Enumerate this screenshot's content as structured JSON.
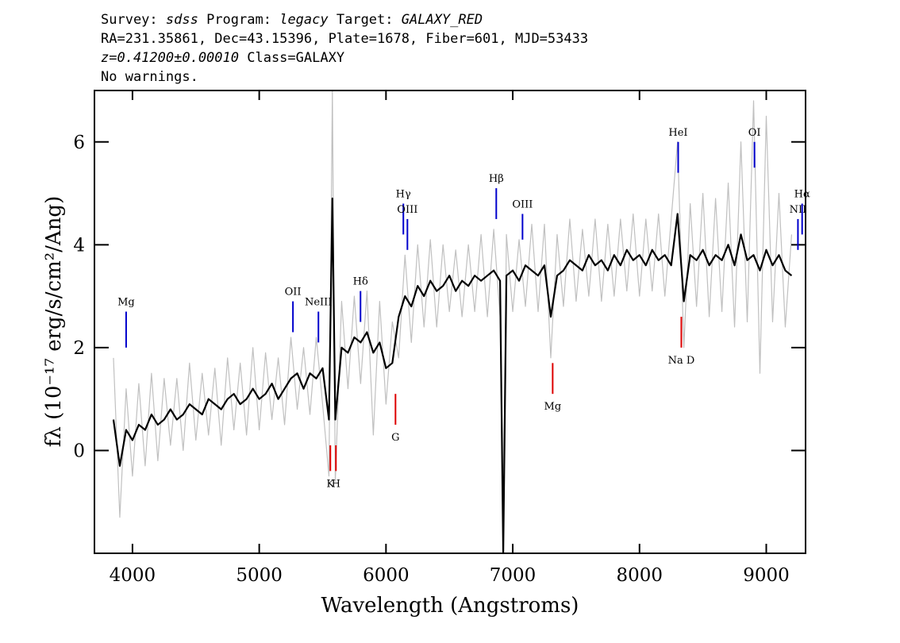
{
  "chart_data": {
    "type": "line",
    "title_lines": [
      [
        {
          "text": "Survey: ",
          "italic": false
        },
        {
          "text": "sdss",
          "italic": true
        },
        {
          "text": " Program: ",
          "italic": false
        },
        {
          "text": "legacy",
          "italic": true
        },
        {
          "text": " Target: ",
          "italic": false
        },
        {
          "text": "GALAXY_RED",
          "italic": true
        }
      ],
      [
        {
          "text": "RA=231.35861, Dec=43.15396, Plate=1678, Fiber=601, MJD=53433",
          "italic": false
        }
      ],
      [
        {
          "text": "z=0.41200±0.00010",
          "italic": true
        },
        {
          "text": " Class=GALAXY",
          "italic": false
        }
      ],
      [
        {
          "text": "No warnings.",
          "italic": false
        }
      ]
    ],
    "xlabel": "Wavelength (Angstroms)",
    "ylabel": "fλ (10⁻¹⁷ erg/s/cm²/Ang)",
    "xlim": [
      3700,
      9310
    ],
    "ylim": [
      -2,
      7
    ],
    "xticks": [
      4000,
      5000,
      6000,
      7000,
      8000,
      9000
    ],
    "yticks": [
      0,
      2,
      4,
      6
    ],
    "grid": false,
    "x": [
      3850,
      3900,
      3950,
      4000,
      4050,
      4100,
      4150,
      4200,
      4250,
      4300,
      4350,
      4400,
      4450,
      4500,
      4550,
      4600,
      4650,
      4700,
      4750,
      4800,
      4850,
      4900,
      4950,
      5000,
      5050,
      5100,
      5150,
      5200,
      5250,
      5300,
      5350,
      5400,
      5450,
      5500,
      5550,
      5577,
      5600,
      5650,
      5700,
      5750,
      5800,
      5850,
      5900,
      5950,
      6000,
      6050,
      6100,
      6150,
      6200,
      6250,
      6300,
      6350,
      6400,
      6450,
      6500,
      6550,
      6600,
      6650,
      6700,
      6750,
      6800,
      6850,
      6900,
      6925,
      6950,
      7000,
      7050,
      7100,
      7150,
      7200,
      7250,
      7300,
      7350,
      7400,
      7450,
      7500,
      7550,
      7600,
      7650,
      7700,
      7750,
      7800,
      7850,
      7900,
      7950,
      8000,
      8050,
      8100,
      8150,
      8200,
      8250,
      8300,
      8350,
      8400,
      8450,
      8500,
      8550,
      8600,
      8650,
      8700,
      8750,
      8800,
      8850,
      8900,
      8950,
      9000,
      9050,
      9100,
      9150,
      9200
    ],
    "series": [
      {
        "color": "#c0c0c0",
        "width": 1.2,
        "values": [
          1.8,
          -1.3,
          1.2,
          -0.5,
          1.3,
          -0.3,
          1.5,
          -0.2,
          1.4,
          0.1,
          1.4,
          0.0,
          1.7,
          0.2,
          1.5,
          0.3,
          1.6,
          0.1,
          1.8,
          0.4,
          1.7,
          0.3,
          2.0,
          0.4,
          1.9,
          0.6,
          1.8,
          0.5,
          2.2,
          0.8,
          2.0,
          0.7,
          2.2,
          0.9,
          -0.5,
          7.0,
          -0.6,
          2.9,
          1.2,
          3.0,
          1.3,
          3.1,
          0.3,
          2.9,
          0.9,
          2.5,
          1.8,
          3.8,
          2.1,
          4.0,
          2.4,
          4.1,
          2.4,
          4.0,
          2.7,
          3.9,
          2.6,
          4.0,
          2.7,
          4.2,
          2.6,
          4.3,
          2.6,
          -2.0,
          4.2,
          2.7,
          4.1,
          2.8,
          4.4,
          2.7,
          4.4,
          1.8,
          4.2,
          2.8,
          4.5,
          2.9,
          4.3,
          3.0,
          4.5,
          2.9,
          4.4,
          3.0,
          4.5,
          3.1,
          4.6,
          3.0,
          4.5,
          3.1,
          4.6,
          3.0,
          4.5,
          6.0,
          2.0,
          4.8,
          2.8,
          5.0,
          2.6,
          4.9,
          2.7,
          5.2,
          2.4,
          6.0,
          2.5,
          6.8,
          1.5,
          6.5,
          2.5,
          5.0,
          2.4,
          4.2
        ]
      },
      {
        "color": "#000000",
        "width": 2.2,
        "values": [
          0.6,
          -0.3,
          0.4,
          0.2,
          0.5,
          0.4,
          0.7,
          0.5,
          0.6,
          0.8,
          0.6,
          0.7,
          0.9,
          0.8,
          0.7,
          1.0,
          0.9,
          0.8,
          1.0,
          1.1,
          0.9,
          1.0,
          1.2,
          1.0,
          1.1,
          1.3,
          1.0,
          1.2,
          1.4,
          1.5,
          1.2,
          1.5,
          1.4,
          1.6,
          0.6,
          4.9,
          0.6,
          2.0,
          1.9,
          2.2,
          2.1,
          2.3,
          1.9,
          2.1,
          1.6,
          1.7,
          2.6,
          3.0,
          2.8,
          3.2,
          3.0,
          3.3,
          3.1,
          3.2,
          3.4,
          3.1,
          3.3,
          3.2,
          3.4,
          3.3,
          3.4,
          3.5,
          3.3,
          -2.0,
          3.4,
          3.5,
          3.3,
          3.6,
          3.5,
          3.4,
          3.6,
          2.6,
          3.4,
          3.5,
          3.7,
          3.6,
          3.5,
          3.8,
          3.6,
          3.7,
          3.5,
          3.8,
          3.6,
          3.9,
          3.7,
          3.8,
          3.6,
          3.9,
          3.7,
          3.8,
          3.6,
          4.6,
          2.9,
          3.8,
          3.7,
          3.9,
          3.6,
          3.8,
          3.7,
          4.0,
          3.6,
          4.2,
          3.7,
          3.8,
          3.5,
          3.9,
          3.6,
          3.8,
          3.5,
          3.4
        ]
      }
    ],
    "annotations": [
      {
        "label": "Mg",
        "x": 3950,
        "y": [
          2.0,
          2.7
        ],
        "color": "#0000cc",
        "side": "above"
      },
      {
        "label": "OII",
        "x": 5266,
        "y": [
          2.3,
          2.9
        ],
        "color": "#0000cc",
        "side": "above"
      },
      {
        "label": "NeIII",
        "x": 5467,
        "y": [
          2.1,
          2.7
        ],
        "color": "#0000cc",
        "side": "above"
      },
      {
        "label": "Hδ",
        "x": 5799,
        "y": [
          2.5,
          3.1
        ],
        "color": "#0000cc",
        "side": "above"
      },
      {
        "label": "Hγ",
        "x": 6137,
        "y": [
          4.2,
          4.8
        ],
        "color": "#0000cc",
        "side": "above"
      },
      {
        "label": "OIII",
        "x": 6169,
        "y": [
          3.9,
          4.5
        ],
        "color": "#0000cc",
        "side": "above"
      },
      {
        "label": "Hβ",
        "x": 6870,
        "y": [
          4.5,
          5.1
        ],
        "color": "#0000cc",
        "side": "above"
      },
      {
        "label": "OIII",
        "x": 7077,
        "y": [
          4.1,
          4.6
        ],
        "color": "#0000cc",
        "side": "above"
      },
      {
        "label": "HeI",
        "x": 8305,
        "y": [
          5.4,
          6.0
        ],
        "color": "#0000cc",
        "side": "above"
      },
      {
        "label": "OI",
        "x": 8907,
        "y": [
          5.5,
          6.0
        ],
        "color": "#0000cc",
        "side": "above"
      },
      {
        "label": "NII",
        "x": 9250,
        "y": [
          3.9,
          4.5
        ],
        "color": "#0000cc",
        "side": "above"
      },
      {
        "label": "Hα",
        "x": 9283,
        "y": [
          4.2,
          4.8
        ],
        "color": "#0000cc",
        "side": "above"
      },
      {
        "label": "K",
        "x": 5561,
        "y": [
          -0.4,
          0.1
        ],
        "color": "#dd0000",
        "side": "below"
      },
      {
        "label": "H",
        "x": 5605,
        "y": [
          -0.4,
          0.1
        ],
        "color": "#dd0000",
        "side": "below"
      },
      {
        "label": "G",
        "x": 6075,
        "y": [
          0.5,
          1.1
        ],
        "color": "#dd0000",
        "side": "below"
      },
      {
        "label": "Mg",
        "x": 7315,
        "y": [
          1.1,
          1.7
        ],
        "color": "#dd0000",
        "side": "below"
      },
      {
        "label": "Na  D",
        "x": 8330,
        "y": [
          2.0,
          2.6
        ],
        "color": "#dd0000",
        "side": "below"
      }
    ]
  }
}
